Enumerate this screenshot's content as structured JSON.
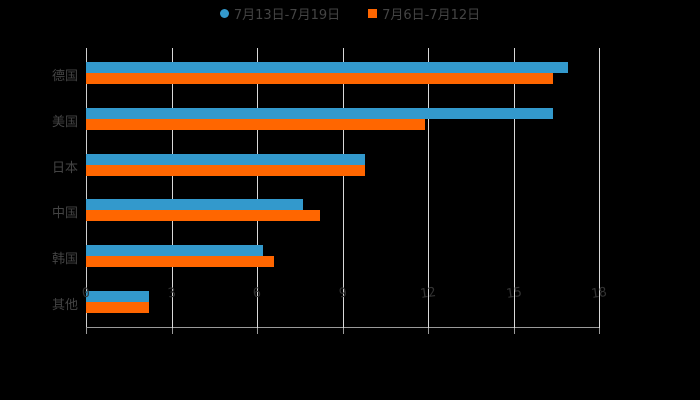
{
  "chart_data": {
    "type": "bar",
    "orientation": "horizontal",
    "title": "",
    "xlabel": "",
    "ylabel": "",
    "categories": [
      "德国",
      "美国",
      "日本",
      "中国",
      "韩国",
      "其他"
    ],
    "series": [
      {
        "name": "7月13日-7月19日",
        "color": "#3399cc",
        "values": [
          16.9,
          16.4,
          9.8,
          7.6,
          6.2,
          2.2
        ]
      },
      {
        "name": "7月6日-7月12日",
        "color": "#ff6600",
        "values": [
          16.4,
          11.9,
          9.8,
          8.2,
          6.6,
          2.2
        ]
      }
    ],
    "xlim": [
      0,
      18
    ],
    "xticks": [
      "0",
      "3",
      "6",
      "9",
      "12",
      "15",
      "18"
    ],
    "grid": true,
    "legend_position": "top"
  },
  "legend": {
    "items": [
      {
        "label": "7月13日-7月19日",
        "color": "#3399cc",
        "marker": "circle"
      },
      {
        "label": "7月6日-7月12日",
        "color": "#ff6600",
        "marker": "square"
      }
    ]
  }
}
